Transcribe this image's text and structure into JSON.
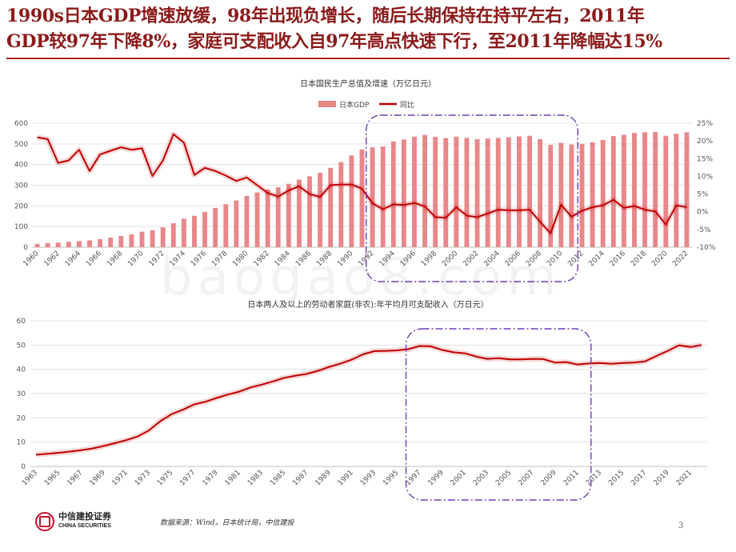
{
  "headline": {
    "line1": "1990s日本GDP增速放缓，98年出现负增长，随后长期保持在持平左右，2011年",
    "line2": "GDP较97年下降8%，家庭可支配收入自97年高点快速下行，至2011年降幅达15%"
  },
  "footer": {
    "logo_cn": "中信建投证券",
    "logo_en": "CHINA SECURITIES",
    "source": "数据来源：Wind，日本统计局，中信建投",
    "page_number": "3"
  },
  "watermark": "baogao8.com",
  "colors": {
    "bar": "#e8878a",
    "line": "#c00000",
    "highlight": "#6a3fb5",
    "headline": "#8b1a1a"
  },
  "chart_data": [
    {
      "type": "bar+line",
      "title": "日本国民生产总值及增速（万亿日元）",
      "legend": [
        "日本GDP",
        "同比"
      ],
      "legend_position": "top",
      "x_labels": [
        "1960",
        "1962",
        "1964",
        "1966",
        "1968",
        "1970",
        "1972",
        "1974",
        "1976",
        "1978",
        "1980",
        "1982",
        "1984",
        "1986",
        "1988",
        "1990",
        "1992",
        "1994",
        "1996",
        "1998",
        "2000",
        "2002",
        "2004",
        "2006",
        "2008",
        "2010",
        "2012",
        "2014",
        "2016",
        "2018",
        "2020",
        "2022"
      ],
      "x": [
        1960,
        1961,
        1962,
        1963,
        1964,
        1965,
        1966,
        1967,
        1968,
        1969,
        1970,
        1971,
        1972,
        1973,
        1974,
        1975,
        1976,
        1977,
        1978,
        1979,
        1980,
        1981,
        1982,
        1983,
        1984,
        1985,
        1986,
        1987,
        1988,
        1989,
        1990,
        1991,
        1992,
        1993,
        1994,
        1995,
        1996,
        1997,
        1998,
        1999,
        2000,
        2001,
        2002,
        2003,
        2004,
        2005,
        2006,
        2007,
        2008,
        2009,
        2010,
        2011,
        2012,
        2013,
        2014,
        2015,
        2016,
        2017,
        2018,
        2019,
        2020,
        2021,
        2022
      ],
      "series": [
        {
          "name": "日本GDP",
          "axis": "left",
          "kind": "bar",
          "values": [
            16,
            20,
            22,
            26,
            30,
            33,
            39,
            46,
            54,
            62,
            75,
            82,
            96,
            116,
            138,
            152,
            171,
            190,
            208,
            226,
            248,
            265,
            280,
            290,
            307,
            327,
            343,
            360,
            384,
            412,
            444,
            473,
            483,
            487,
            511,
            521,
            535,
            543,
            534,
            528,
            535,
            529,
            523,
            526,
            529,
            532,
            536,
            539,
            523,
            495,
            505,
            497,
            500,
            508,
            519,
            538,
            544,
            553,
            556,
            557,
            539,
            549,
            556
          ]
        },
        {
          "name": "同比",
          "axis": "right",
          "kind": "line",
          "values": [
            21,
            20.5,
            13.8,
            14.5,
            17.5,
            11.5,
            16.2,
            17.2,
            18.2,
            17.5,
            17.9,
            10.1,
            14.5,
            21.9,
            19.5,
            10.4,
            12.4,
            11.5,
            10.2,
            8.7,
            9.7,
            7.5,
            5.3,
            4.3,
            6,
            7.2,
            5,
            4.2,
            7.5,
            7.7,
            7.7,
            6.5,
            2.4,
            0.7,
            2.1,
            1.9,
            2.5,
            1.5,
            -1.5,
            -1.7,
            1.3,
            -1.1,
            -1.5,
            -0.5,
            0.6,
            0.4,
            0.4,
            0.6,
            -2.8,
            -6.1,
            2,
            -1.4,
            0.3,
            1.3,
            1.8,
            3.4,
            1.1,
            1.6,
            0.6,
            0.1,
            -3.6,
            1.8,
            1.3
          ]
        }
      ],
      "ylim_left": [
        0,
        600
      ],
      "ylim_right": [
        -10,
        25
      ],
      "left_ticks": [
        0,
        100,
        200,
        300,
        400,
        500,
        600
      ],
      "right_ticks": [
        "-10%",
        "-5%",
        "0%",
        "5%",
        "10%",
        "15%",
        "20%",
        "25%"
      ],
      "highlight_range": [
        1993,
        2010
      ],
      "grid": "horizontal"
    },
    {
      "type": "line",
      "title": "日本两人及以上的劳动者家庭(非农):年平均月可支配收入（万日元）",
      "x_labels": [
        "1963",
        "1965",
        "1967",
        "1969",
        "1971",
        "1973",
        "1975",
        "1977",
        "1979",
        "1981",
        "1983",
        "1985",
        "1987",
        "1989",
        "1991",
        "1993",
        "1995",
        "1997",
        "1999",
        "2001",
        "2003",
        "2005",
        "2007",
        "2009",
        "2011",
        "2013",
        "2015",
        "2017",
        "2019",
        "2021"
      ],
      "x": [
        1963,
        1964,
        1965,
        1966,
        1967,
        1968,
        1969,
        1970,
        1971,
        1972,
        1973,
        1974,
        1975,
        1976,
        1977,
        1978,
        1979,
        1980,
        1981,
        1982,
        1983,
        1984,
        1985,
        1986,
        1987,
        1988,
        1989,
        1990,
        1991,
        1992,
        1993,
        1994,
        1995,
        1996,
        1997,
        1998,
        1999,
        2000,
        2001,
        2002,
        2003,
        2004,
        2005,
        2006,
        2007,
        2008,
        2009,
        2010,
        2011,
        2012,
        2013,
        2014,
        2015,
        2016,
        2017,
        2018,
        2019,
        2020,
        2021,
        2022
      ],
      "series": [
        {
          "name": "可支配收入",
          "values": [
            4.8,
            5.2,
            5.6,
            6.1,
            6.7,
            7.4,
            8.4,
            9.6,
            10.8,
            12.3,
            14.8,
            18.6,
            21.5,
            23.3,
            25.5,
            26.6,
            28.2,
            29.6,
            30.8,
            32.5,
            33.7,
            35.0,
            36.5,
            37.4,
            38.1,
            39.4,
            41.0,
            42.4,
            44.0,
            46.2,
            47.5,
            47.6,
            47.8,
            48.3,
            49.6,
            49.5,
            48.0,
            47.0,
            46.6,
            45.3,
            44.3,
            44.6,
            44.1,
            44.1,
            44.3,
            44.2,
            42.8,
            43.0,
            42.0,
            42.4,
            42.6,
            42.3,
            42.6,
            42.8,
            43.3,
            45.5,
            47.6,
            49.9,
            49.2,
            50.0
          ]
        }
      ],
      "ylim": [
        0,
        60
      ],
      "y_ticks": [
        0,
        10,
        20,
        30,
        40,
        50,
        60
      ],
      "highlight_range": [
        1997,
        2011
      ],
      "grid": "horizontal"
    }
  ]
}
